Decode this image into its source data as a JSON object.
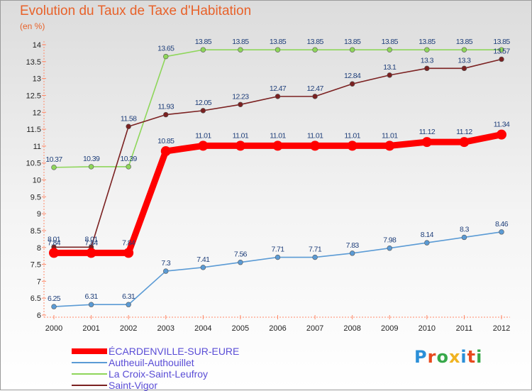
{
  "header": {
    "title": "Evolution du Taux de Taxe d'Habitation",
    "subtitle": "(en %)"
  },
  "brand": {
    "chars": [
      "P",
      "r",
      "o",
      "x",
      "i",
      "t",
      "i"
    ],
    "colors": [
      "#2b8fd8",
      "#e84a1e",
      "#37a84a",
      "#f0b321",
      "#2b8fd8",
      "#e84a1e",
      "#37a84a"
    ]
  },
  "chart_data": {
    "type": "line",
    "title": "Evolution du Taux de Taxe d'Habitation",
    "subtitle": "(en %)",
    "xlabel": "",
    "ylabel": "",
    "ylim": [
      6,
      14
    ],
    "ytick_step": 0.5,
    "x": [
      2000,
      2001,
      2002,
      2003,
      2004,
      2005,
      2006,
      2007,
      2008,
      2009,
      2010,
      2011,
      2012
    ],
    "yticks": [
      "6",
      "6.5",
      "7",
      "7.5",
      "8",
      "8.5",
      "9",
      "9.5",
      "10",
      "10.5",
      "11",
      "11.5",
      "12",
      "12.5",
      "13",
      "13.5",
      "14"
    ],
    "grid": false,
    "legend_position": "bottom-left",
    "series": [
      {
        "name": "Autheuil-Authouillet",
        "color": "#5b9bd5",
        "label_color": "#1f3f7a",
        "emphasis": false,
        "values": [
          6.25,
          6.31,
          6.31,
          7.3,
          7.41,
          7.56,
          7.71,
          7.71,
          7.83,
          7.98,
          8.14,
          8.3,
          8.46
        ],
        "labels": [
          "6.25",
          "6.31",
          "6.31",
          "7.3",
          "7.41",
          "7.56",
          "7.71",
          "7.71",
          "7.83",
          "7.98",
          "8.14",
          "8.3",
          "8.46"
        ]
      },
      {
        "name": "La Croix-Saint-Leufroy",
        "color": "#8ed65a",
        "label_color": "#1f3f7a",
        "emphasis": false,
        "values": [
          10.37,
          10.39,
          10.39,
          13.65,
          13.85,
          13.85,
          13.85,
          13.85,
          13.85,
          13.85,
          13.85,
          13.85,
          13.85
        ],
        "labels": [
          "10.37",
          "10.39",
          "10.39",
          "13.65",
          "13.85",
          "13.85",
          "13.85",
          "13.85",
          "13.85",
          "13.85",
          "13.85",
          "13.85",
          "13.85"
        ]
      },
      {
        "name": "Saint-Vigor",
        "color": "#7b2121",
        "label_color": "#1f3f7a",
        "emphasis": false,
        "values": [
          8.01,
          8.01,
          11.58,
          11.93,
          12.05,
          12.23,
          12.47,
          12.47,
          12.84,
          13.1,
          13.3,
          13.3,
          13.57
        ],
        "labels": [
          "8.01",
          "8.01",
          "11.58",
          "11.93",
          "12.05",
          "12.23",
          "12.47",
          "12.47",
          "12.84",
          "13.1",
          "13.3",
          "13.3",
          "13.57"
        ]
      },
      {
        "name": "ÉCARDENVILLE-SUR-EURE",
        "color": "#ff0000",
        "label_color": "#1f3f7a",
        "emphasis": true,
        "values": [
          7.84,
          7.84,
          7.84,
          10.85,
          11.01,
          11.01,
          11.01,
          11.01,
          11.01,
          11.01,
          11.12,
          11.12,
          11.34
        ],
        "labels": [
          "7.84",
          "7.84",
          "7.84",
          "10.85",
          "11.01",
          "11.01",
          "11.01",
          "11.01",
          "11.01",
          "11.01",
          "11.12",
          "11.12",
          "11.34"
        ]
      }
    ],
    "legend_order": [
      "ÉCARDENVILLE-SUR-EURE",
      "Autheuil-Authouillet",
      "La Croix-Saint-Leufroy",
      "Saint-Vigor"
    ]
  }
}
